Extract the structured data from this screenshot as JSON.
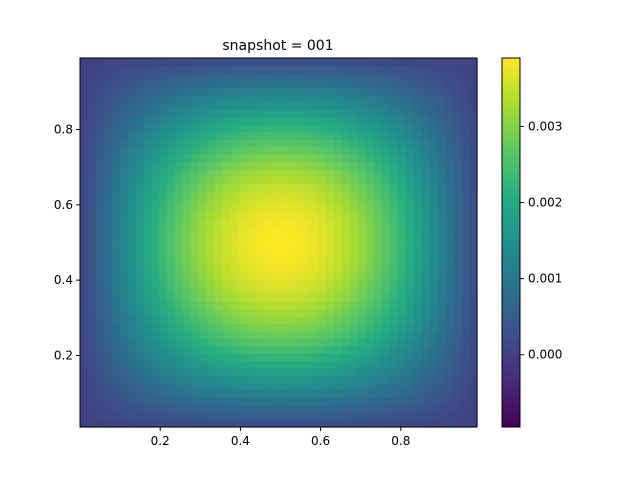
{
  "chart_data": {
    "type": "heatmap",
    "title": "snapshot = 001",
    "xlabel": "",
    "ylabel": "",
    "xlim": [
      0.0,
      0.99
    ],
    "ylim": [
      0.01,
      0.99
    ],
    "x_ticks": [
      "0.2",
      "0.4",
      "0.6",
      "0.8"
    ],
    "y_ticks": [
      "0.2",
      "0.4",
      "0.6",
      "0.8"
    ],
    "colormap": "viridis",
    "colorbar": {
      "vmin": -0.00095,
      "vmax": 0.0039,
      "ticks": [
        0.0,
        0.001,
        0.002,
        0.003
      ],
      "tick_labels": [
        "0.000",
        "0.001",
        "0.002",
        "0.003"
      ]
    },
    "field": {
      "description_free": false,
      "grid_resolution": 50,
      "peak_value": 0.0039,
      "peak_location": [
        0.5,
        0.5
      ],
      "edge_value": 0.0
    },
    "grid": false
  }
}
